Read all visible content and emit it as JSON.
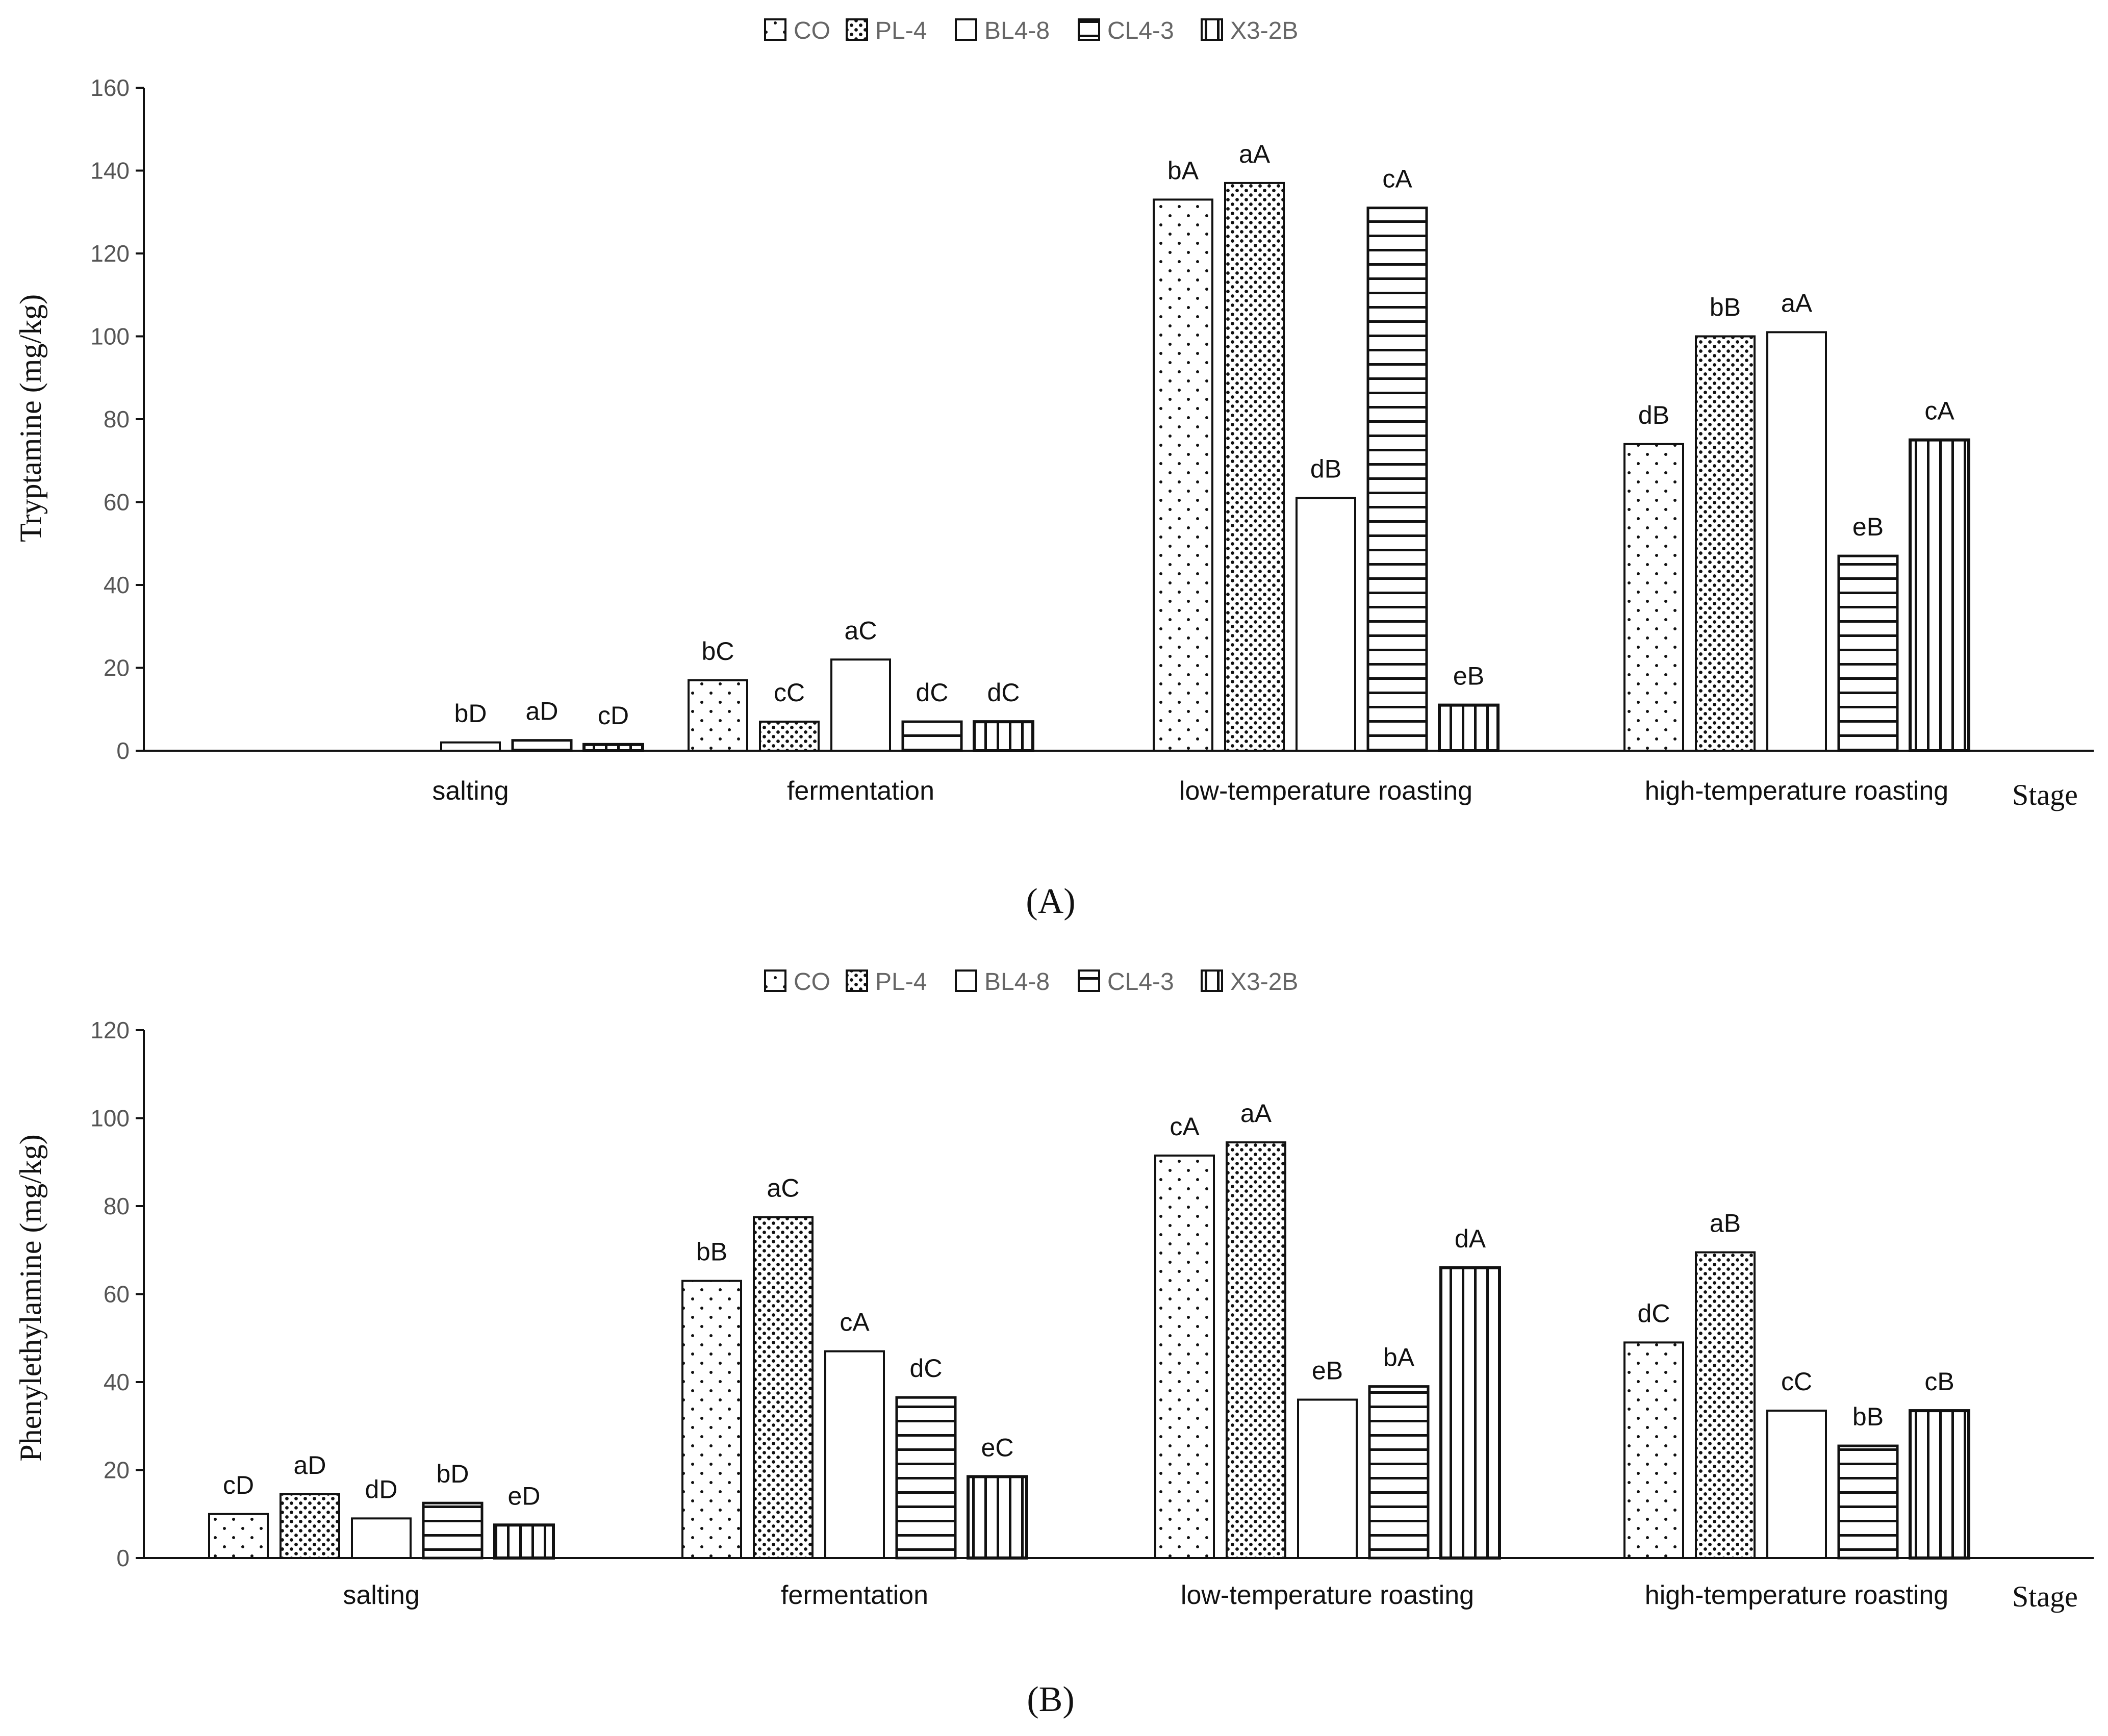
{
  "chart_data": [
    {
      "type": "bar",
      "panel": "A",
      "ylabel": "Tryptamine (mg/kg)",
      "xlabel": "Stage",
      "ylim": [
        0,
        160
      ],
      "yticks": [
        0,
        20,
        40,
        60,
        80,
        100,
        120,
        140,
        160
      ],
      "categories": [
        "salting",
        "fermentation",
        "low-temperature roasting",
        "high-temperature roasting"
      ],
      "legend": [
        "CO",
        "PL-4",
        "BL4-8",
        "CL4-3",
        "X3-2B"
      ],
      "series": [
        {
          "name": "CO",
          "values": [
            0,
            17,
            133,
            74
          ],
          "labels": [
            "",
            "bC",
            "bA",
            "dB"
          ]
        },
        {
          "name": "PL-4",
          "values": [
            0,
            7,
            137,
            100
          ],
          "labels": [
            "",
            "cC",
            "aA",
            "bB"
          ]
        },
        {
          "name": "BL4-8",
          "values": [
            2,
            22,
            61,
            101
          ],
          "labels": [
            "bD",
            "aC",
            "dB",
            "aA"
          ]
        },
        {
          "name": "CL4-3",
          "values": [
            2.5,
            7,
            131,
            47
          ],
          "labels": [
            "aD",
            "dC",
            "cA",
            "eB"
          ]
        },
        {
          "name": "X3-2B",
          "values": [
            1.5,
            7,
            11,
            75
          ],
          "labels": [
            "cD",
            "dC",
            "eB",
            "cA"
          ]
        }
      ]
    },
    {
      "type": "bar",
      "panel": "B",
      "ylabel": "Phenylethylamine (mg/kg)",
      "xlabel": "Stage",
      "ylim": [
        0,
        120
      ],
      "yticks": [
        0,
        20,
        40,
        60,
        80,
        100,
        120
      ],
      "categories": [
        "salting",
        "fermentation",
        "low-temperature roasting",
        "high-temperature roasting"
      ],
      "legend": [
        "CO",
        "PL-4",
        "BL4-8",
        "CL4-3",
        "X3-2B"
      ],
      "series": [
        {
          "name": "CO",
          "values": [
            10,
            63,
            91.5,
            49
          ],
          "labels": [
            "cD",
            "bB",
            "cA",
            "dC"
          ]
        },
        {
          "name": "PL-4",
          "values": [
            14.5,
            77.5,
            94.5,
            69.5
          ],
          "labels": [
            "aD",
            "aC",
            "aA",
            "aB"
          ]
        },
        {
          "name": "BL4-8",
          "values": [
            9,
            47,
            36,
            33.5
          ],
          "labels": [
            "dD",
            "cA",
            "eB",
            "cC"
          ]
        },
        {
          "name": "CL4-3",
          "values": [
            12.5,
            36.5,
            39,
            25.5
          ],
          "labels": [
            "bD",
            "dC",
            "bA",
            "bB"
          ]
        },
        {
          "name": "X3-2B",
          "values": [
            7.5,
            18.5,
            66,
            33.5
          ],
          "labels": [
            "eD",
            "eC",
            "dA",
            "cB"
          ]
        }
      ]
    }
  ],
  "panel_labels": [
    "(A)",
    "(B)"
  ]
}
